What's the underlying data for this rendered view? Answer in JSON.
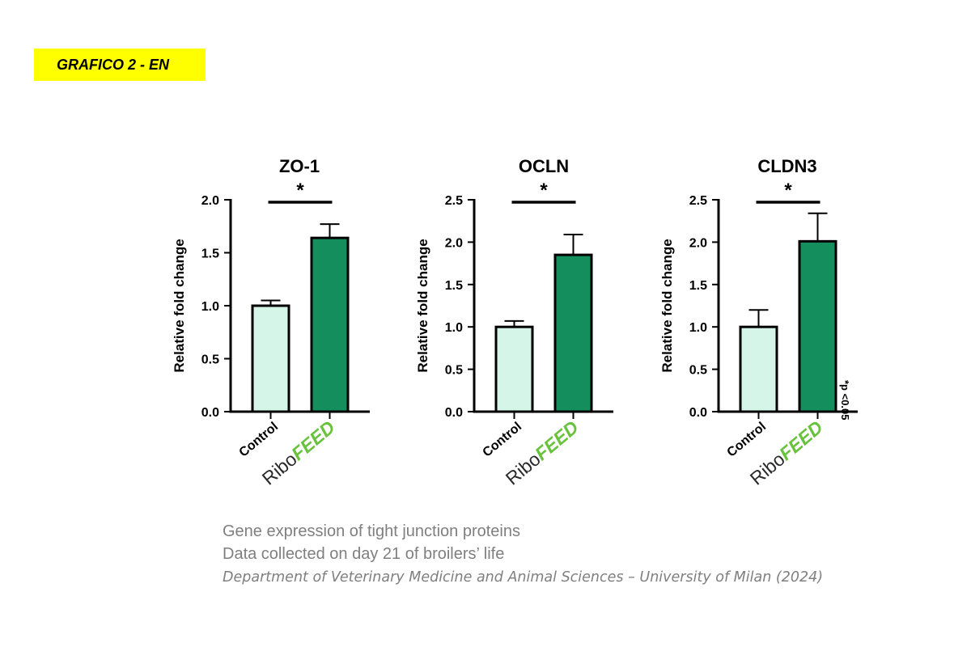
{
  "header_tag": "GRAFICO 2 - EN",
  "significance_note": "*p <0.05",
  "captions": {
    "line1": "Gene expression of tight junction proteins",
    "line2": "Data collected on day 21 of broilers’ life",
    "line3": "Department of Veterinary Medicine and Animal Sciences – University of Milan (2024)"
  },
  "colors": {
    "control_fill": "#d5f5e9",
    "riboFEED_fill": "#138e5c",
    "ribo_text": "#2a2a2a",
    "feed_text": "#68c23c",
    "tag_background": "#ffff00"
  },
  "chart_data": [
    {
      "type": "bar",
      "title": "ZO-1",
      "ylabel": "Relative fold change",
      "categories": [
        "Control",
        "RiboFEED"
      ],
      "values": [
        1.0,
        1.64
      ],
      "errors": [
        0.05,
        0.13
      ],
      "ylim": [
        0,
        2.0
      ],
      "yticks": [
        "0.0",
        "0.5",
        "1.0",
        "1.5",
        "2.0"
      ],
      "significance": "*"
    },
    {
      "type": "bar",
      "title": "OCLN",
      "ylabel": "Relative fold change",
      "categories": [
        "Control",
        "RiboFEED"
      ],
      "values": [
        1.0,
        1.85
      ],
      "errors": [
        0.07,
        0.24
      ],
      "ylim": [
        0,
        2.5
      ],
      "yticks": [
        "0.0",
        "0.5",
        "1.0",
        "1.5",
        "2.0",
        "2.5"
      ],
      "significance": "*"
    },
    {
      "type": "bar",
      "title": "CLDN3",
      "ylabel": "Relative fold change",
      "categories": [
        "Control",
        "RiboFEED"
      ],
      "values": [
        1.0,
        2.01
      ],
      "errors": [
        0.2,
        0.33
      ],
      "ylim": [
        0,
        2.5
      ],
      "yticks": [
        "0.0",
        "0.5",
        "1.0",
        "1.5",
        "2.0",
        "2.5"
      ],
      "significance": "*"
    }
  ]
}
